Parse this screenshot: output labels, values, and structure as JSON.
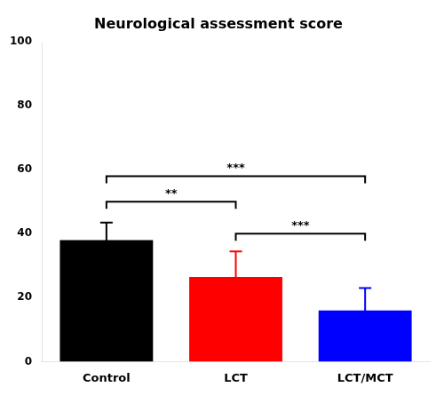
{
  "chart_data": {
    "type": "bar",
    "title": "Neurological assessment score",
    "categories": [
      "Control",
      "LCT",
      "LCT/MCT"
    ],
    "values": [
      38.0,
      26.5,
      16.0
    ],
    "errors": [
      5.5,
      8.0,
      7.0
    ],
    "colors": [
      "#000000",
      "#ff0000",
      "#0000ff"
    ],
    "ylim": [
      0,
      100
    ],
    "yticks": [
      0,
      20,
      40,
      60,
      80,
      100
    ],
    "grid": false,
    "annotations": [
      {
        "x1": "Control",
        "x2": "LCT",
        "y": 50,
        "label": "**"
      },
      {
        "x1": "Control",
        "x2": "LCT/MCT",
        "y": 58,
        "label": "***"
      },
      {
        "x1": "LCT",
        "x2": "LCT/MCT",
        "y": 40,
        "label": "***"
      }
    ]
  }
}
